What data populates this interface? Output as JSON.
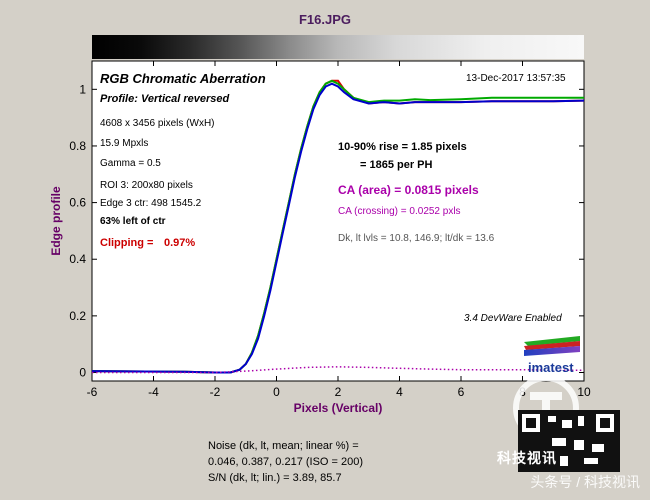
{
  "window_title": "F16.JPG",
  "colors": {
    "purple": "#660066",
    "magenta": "#aa00aa",
    "red": "#cc0000",
    "red_curve": "#dd0000",
    "green_curve": "#00aa00",
    "blue_curve": "#0000cc",
    "background": "#d4d0c8",
    "plot": "#ffffff"
  },
  "info": {
    "chart_title": "RGB Chromatic Aberration",
    "timestamp": "13-Dec-2017 13:57:35",
    "profile": "Profile: Vertical reversed",
    "pixels": "4608 x 3456 pixels (WxH)",
    "mpxls": "15.9 Mpxls",
    "gamma": "Gamma = 0.5",
    "roi": "ROI 3: 200x80 pixels",
    "edge": "Edge 3 ctr: 498  1545.2",
    "left_of_ctr": "63% left of ctr",
    "clipping_label": "Clipping =",
    "clipping_value": "0.97%",
    "rise_line1": "10-90% rise = 1.85 pixels",
    "rise_line2": "= 1865 per PH",
    "ca_area": "CA (area) = 0.0815 pixels",
    "ca_crossing": "CA (crossing) = 0.0252 pxls",
    "dk": "Dk, lt lvls = 10.8, 146.9;  lt/dk = 13.6",
    "devware": "3.4  DevWare Enabled",
    "logo_text": "imatest"
  },
  "bottom": {
    "noise_line1": "Noise (dk, lt, mean; linear %) =",
    "noise_line2": "0.046,  0.387,  0.217  (ISO =  200)",
    "sn_line": "S/N (dk, lt; lin.) = 3.89,  85.7"
  },
  "watermark": {
    "brand": "科技视讯",
    "credit": "头条号 / 科技视讯"
  },
  "chart_data": {
    "type": "line",
    "xlabel": "Pixels (Vertical)",
    "ylabel": "Edge profile",
    "xlim": [
      -6,
      10
    ],
    "ylim": [
      -0.03,
      1.1
    ],
    "xticks": [
      "-6",
      "-4",
      "-2",
      "0",
      "2",
      "4",
      "6",
      "8",
      "10"
    ],
    "yticks": [
      "0",
      "0.2",
      "0.4",
      "0.6",
      "0.8",
      "1"
    ],
    "ytick_values": [
      0,
      0.2,
      0.4,
      0.6,
      0.8,
      1
    ],
    "grid": false,
    "series": [
      {
        "color": "red",
        "x": [
          -6,
          -3,
          -2,
          -1.5,
          -1.2,
          -1,
          -0.8,
          -0.6,
          -0.4,
          -0.2,
          0,
          0.2,
          0.4,
          0.6,
          0.8,
          1,
          1.2,
          1.4,
          1.6,
          1.8,
          2,
          2.2,
          2.5,
          3,
          3.5,
          4,
          4.5,
          5,
          6,
          7,
          8,
          9,
          10
        ],
        "y": [
          0.005,
          0.003,
          0.0,
          0.0,
          0.01,
          0.03,
          0.07,
          0.13,
          0.21,
          0.3,
          0.4,
          0.5,
          0.6,
          0.7,
          0.79,
          0.87,
          0.94,
          0.99,
          1.02,
          1.03,
          1.03,
          1.0,
          0.97,
          0.95,
          0.955,
          0.95,
          0.955,
          0.955,
          0.955,
          0.958,
          0.958,
          0.958,
          0.96
        ]
      },
      {
        "color": "green",
        "x": [
          -6,
          -3,
          -2,
          -1.5,
          -1.2,
          -1,
          -0.8,
          -0.6,
          -0.4,
          -0.2,
          0,
          0.2,
          0.4,
          0.6,
          0.8,
          1,
          1.2,
          1.4,
          1.6,
          1.8,
          2,
          2.2,
          2.5,
          3,
          3.5,
          4,
          4.5,
          5,
          6,
          7,
          8,
          9,
          10
        ],
        "y": [
          0.005,
          0.003,
          0.0,
          0.0,
          0.01,
          0.03,
          0.07,
          0.13,
          0.21,
          0.3,
          0.4,
          0.5,
          0.6,
          0.7,
          0.79,
          0.87,
          0.94,
          0.99,
          1.02,
          1.03,
          1.02,
          1.0,
          0.97,
          0.955,
          0.96,
          0.96,
          0.965,
          0.962,
          0.965,
          0.97,
          0.97,
          0.97,
          0.97
        ]
      },
      {
        "color": "blue",
        "x": [
          -6,
          -3,
          -2,
          -1.5,
          -1.2,
          -1,
          -0.8,
          -0.6,
          -0.4,
          -0.2,
          0,
          0.2,
          0.4,
          0.6,
          0.8,
          1,
          1.2,
          1.4,
          1.6,
          1.8,
          2,
          2.2,
          2.5,
          3,
          3.5,
          4,
          4.5,
          5,
          6,
          7,
          8,
          9,
          10
        ],
        "y": [
          0.005,
          0.003,
          0.0,
          0.0,
          0.01,
          0.03,
          0.065,
          0.12,
          0.2,
          0.29,
          0.39,
          0.49,
          0.59,
          0.69,
          0.78,
          0.86,
          0.93,
          0.98,
          1.01,
          1.02,
          1.01,
          0.99,
          0.965,
          0.95,
          0.955,
          0.95,
          0.955,
          0.955,
          0.955,
          0.958,
          0.958,
          0.958,
          0.96
        ]
      },
      {
        "color": "magenta",
        "x": [
          -6,
          -2,
          -1,
          0,
          1,
          2,
          3,
          4,
          5,
          6,
          7,
          8,
          9,
          10
        ],
        "y": [
          0.0,
          0.0,
          0.005,
          0.012,
          0.018,
          0.02,
          0.018,
          0.015,
          0.012,
          0.01,
          0.01,
          0.01,
          0.008,
          0.008
        ]
      }
    ]
  }
}
